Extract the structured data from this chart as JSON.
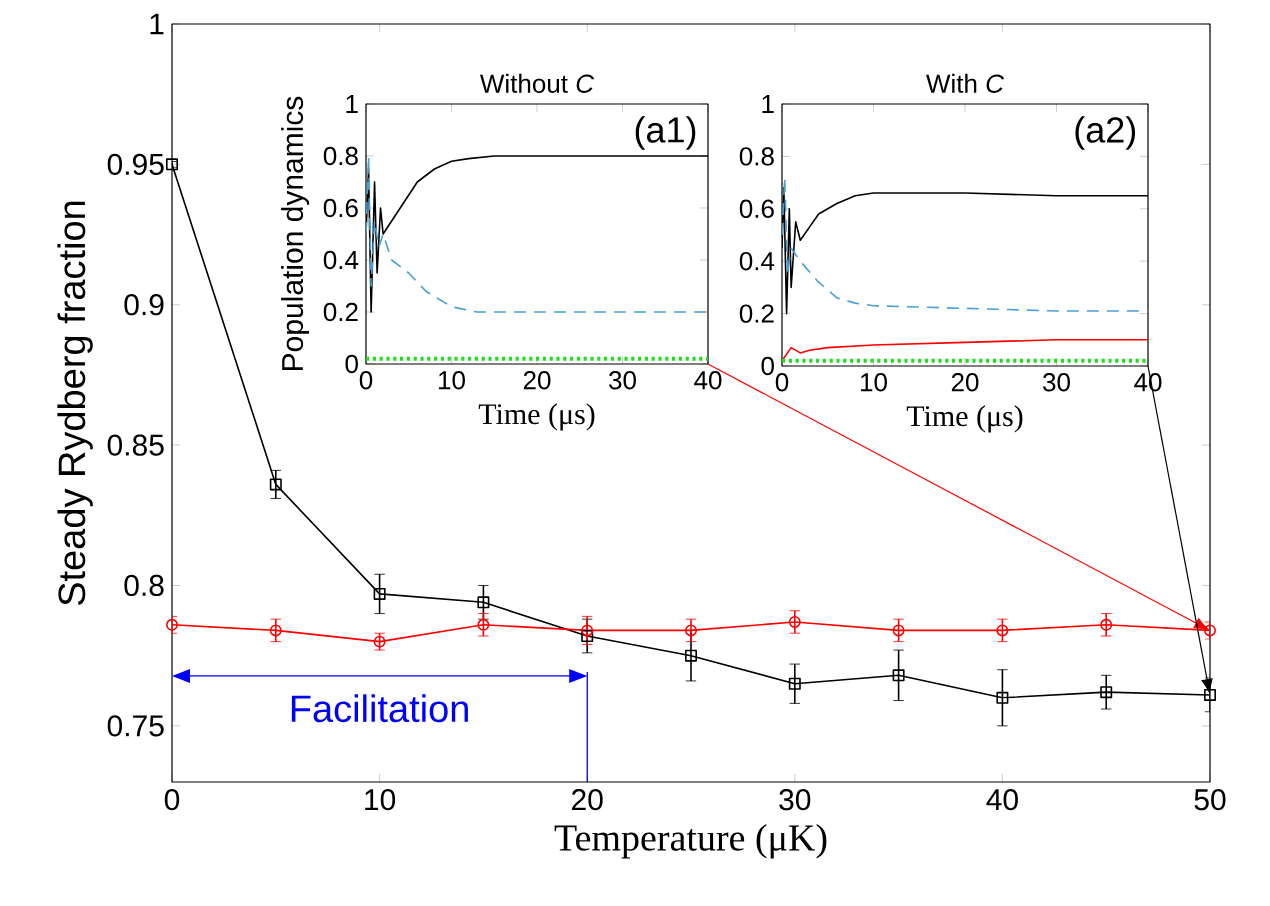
{
  "chart_data": [
    {
      "type": "line",
      "xlabel": "Temperature (μK)",
      "ylabel": "Steady Rydberg fraction",
      "x": [
        0,
        5,
        10,
        15,
        20,
        25,
        30,
        35,
        40,
        45,
        50
      ],
      "xlim": [
        0,
        50
      ],
      "ylim": [
        0.73,
        1
      ],
      "xticks": [
        0,
        10,
        20,
        30,
        40,
        50
      ],
      "yticks": [
        0.75,
        0.8,
        0.85,
        0.9,
        0.95,
        1
      ],
      "series": [
        {
          "color": "#000000",
          "marker": "square",
          "values": [
            0.95,
            0.836,
            0.797,
            0.794,
            0.782,
            0.775,
            0.765,
            0.768,
            0.76,
            0.762,
            0.761
          ],
          "errors": [
            0.001,
            0.005,
            0.007,
            0.006,
            0.006,
            0.009,
            0.007,
            0.009,
            0.01,
            0.006,
            0.006
          ]
        },
        {
          "color": "#ff0000",
          "marker": "circle",
          "values": [
            0.786,
            0.784,
            0.78,
            0.786,
            0.784,
            0.784,
            0.787,
            0.784,
            0.784,
            0.786,
            0.784
          ],
          "errors": [
            0.003,
            0.004,
            0.003,
            0.004,
            0.005,
            0.004,
            0.004,
            0.004,
            0.004,
            0.004,
            0.003
          ]
        }
      ],
      "ref_lines": [
        {
          "axis": "x",
          "value": 20,
          "color": "#0000ff"
        }
      ],
      "annotations": [
        "Facilitation"
      ]
    },
    {
      "type": "line",
      "title": "Without *C*",
      "xlabel": "Time (μs)",
      "ylabel": "Population dynamics",
      "xlim": [
        0,
        40
      ],
      "ylim": [
        0,
        1
      ],
      "xticks": [
        0,
        10,
        20,
        30,
        40
      ],
      "yticks": [
        0,
        0.2,
        0.4,
        0.6,
        0.8,
        1
      ],
      "annotations": [
        "(a1)"
      ],
      "series": [
        {
          "color": "#000000",
          "line_style": "solid",
          "x": [
            0,
            0.3,
            0.6,
            1,
            1.3,
            1.7,
            2,
            3,
            4,
            5,
            6,
            8,
            10,
            12,
            15,
            20,
            30,
            40
          ],
          "values": [
            0.5,
            0.75,
            0.2,
            0.7,
            0.35,
            0.6,
            0.5,
            0.55,
            0.6,
            0.65,
            0.7,
            0.75,
            0.78,
            0.79,
            0.8,
            0.8,
            0.8,
            0.8
          ]
        },
        {
          "color": "#4a9fd5",
          "line_style": "dashed",
          "x": [
            0,
            0.3,
            0.6,
            1,
            1.5,
            2,
            3,
            5,
            7,
            10,
            13,
            20,
            30,
            40
          ],
          "values": [
            0.5,
            0.8,
            0.3,
            0.55,
            0.45,
            0.5,
            0.4,
            0.35,
            0.28,
            0.22,
            0.2,
            0.2,
            0.2,
            0.2
          ]
        },
        {
          "color": "#22dd22",
          "line_style": "dotted",
          "x": [
            0,
            40
          ],
          "values": [
            0.02,
            0.02
          ]
        }
      ]
    },
    {
      "type": "line",
      "title": "With *C*",
      "xlabel": "Time (μs)",
      "xlim": [
        0,
        40
      ],
      "ylim": [
        0,
        1
      ],
      "xticks": [
        0,
        10,
        20,
        30,
        40
      ],
      "yticks": [
        0,
        0.2,
        0.4,
        0.6,
        0.8,
        1
      ],
      "annotations": [
        "(a2)"
      ],
      "series": [
        {
          "color": "#000000",
          "line_style": "solid",
          "x": [
            0,
            0.2,
            0.5,
            0.8,
            1,
            1.5,
            2,
            3,
            4,
            6,
            8,
            10,
            20,
            30,
            40
          ],
          "values": [
            0.45,
            0.68,
            0.2,
            0.6,
            0.3,
            0.55,
            0.48,
            0.53,
            0.58,
            0.62,
            0.65,
            0.66,
            0.66,
            0.65,
            0.65
          ]
        },
        {
          "color": "#4a9fd5",
          "line_style": "dashed",
          "x": [
            0,
            0.3,
            0.6,
            1,
            2,
            4,
            6,
            8,
            10,
            20,
            30,
            40
          ],
          "values": [
            0.5,
            0.72,
            0.35,
            0.45,
            0.4,
            0.32,
            0.26,
            0.24,
            0.23,
            0.22,
            0.21,
            0.21
          ]
        },
        {
          "color": "#ff0000",
          "line_style": "solid",
          "x": [
            0,
            1,
            2,
            3,
            5,
            10,
            20,
            30,
            40
          ],
          "values": [
            0.02,
            0.07,
            0.05,
            0.06,
            0.07,
            0.08,
            0.09,
            0.1,
            0.1
          ]
        },
        {
          "color": "#22dd22",
          "line_style": "dotted",
          "x": [
            0,
            40
          ],
          "values": [
            0.02,
            0.02
          ]
        }
      ]
    }
  ]
}
